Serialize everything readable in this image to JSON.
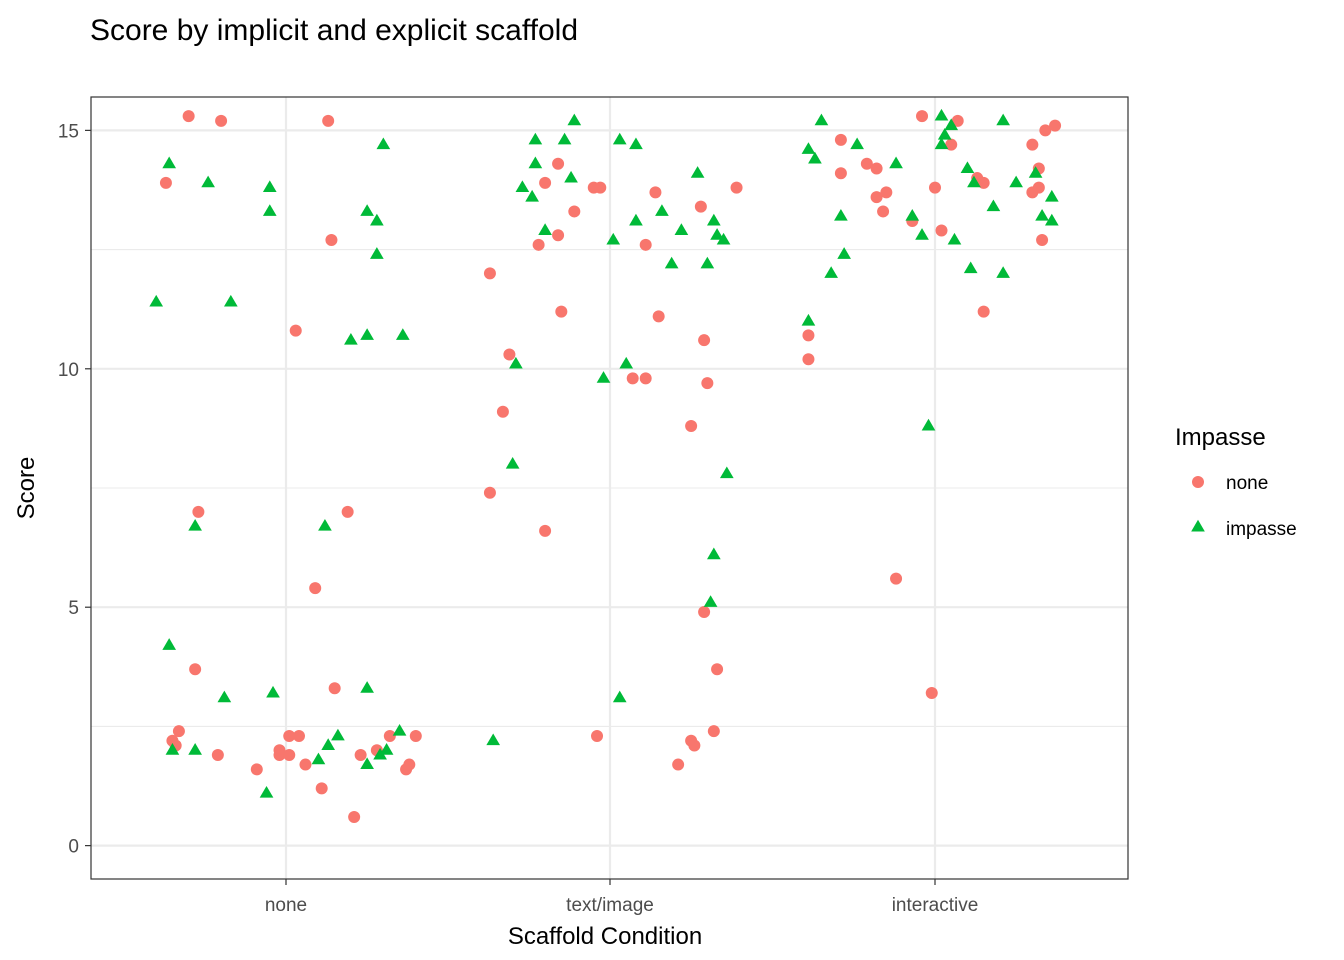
{
  "chart_data": {
    "type": "scatter",
    "title": "Score by implicit and explicit scaffold",
    "xlabel": "Scaffold Condition",
    "ylabel": "Score",
    "categories": [
      "none",
      "text/image",
      "interactive"
    ],
    "ylim": [
      -0.7,
      15.7
    ],
    "yticks": [
      0,
      5,
      10,
      15
    ],
    "grid": true,
    "legend": {
      "title": "Impasse",
      "position": "right",
      "entries": [
        {
          "label": "none",
          "color": "#F8766D",
          "shape": "circle"
        },
        {
          "label": "impasse",
          "color": "#00BA38",
          "shape": "triangle"
        }
      ]
    },
    "series": [
      {
        "name": "none",
        "color": "#F8766D",
        "shape": "circle",
        "points": [
          {
            "x": "none",
            "jitter": -0.37,
            "y": 13.9
          },
          {
            "x": "none",
            "jitter": -0.3,
            "y": 15.3
          },
          {
            "x": "none",
            "jitter": -0.2,
            "y": 15.2
          },
          {
            "x": "none",
            "jitter": 0.13,
            "y": 15.2
          },
          {
            "x": "none",
            "jitter": 0.14,
            "y": 12.7
          },
          {
            "x": "none",
            "jitter": 0.03,
            "y": 10.8
          },
          {
            "x": "none",
            "jitter": -0.27,
            "y": 7.0
          },
          {
            "x": "none",
            "jitter": 0.19,
            "y": 7.0
          },
          {
            "x": "none",
            "jitter": 0.09,
            "y": 5.4
          },
          {
            "x": "none",
            "jitter": -0.28,
            "y": 3.7
          },
          {
            "x": "none",
            "jitter": 0.15,
            "y": 3.3
          },
          {
            "x": "none",
            "jitter": -0.33,
            "y": 2.4
          },
          {
            "x": "none",
            "jitter": -0.35,
            "y": 2.2
          },
          {
            "x": "none",
            "jitter": -0.34,
            "y": 2.1
          },
          {
            "x": "none",
            "jitter": -0.21,
            "y": 1.9
          },
          {
            "x": "none",
            "jitter": -0.09,
            "y": 1.6
          },
          {
            "x": "none",
            "jitter": -0.02,
            "y": 2.0
          },
          {
            "x": "none",
            "jitter": -0.02,
            "y": 1.9
          },
          {
            "x": "none",
            "jitter": 0.01,
            "y": 1.9
          },
          {
            "x": "none",
            "jitter": 0.01,
            "y": 2.3
          },
          {
            "x": "none",
            "jitter": 0.04,
            "y": 2.3
          },
          {
            "x": "none",
            "jitter": 0.06,
            "y": 1.7
          },
          {
            "x": "none",
            "jitter": 0.11,
            "y": 1.2
          },
          {
            "x": "none",
            "jitter": 0.21,
            "y": 0.6
          },
          {
            "x": "none",
            "jitter": 0.23,
            "y": 1.9
          },
          {
            "x": "none",
            "jitter": 0.28,
            "y": 2.0
          },
          {
            "x": "none",
            "jitter": 0.32,
            "y": 2.3
          },
          {
            "x": "none",
            "jitter": 0.37,
            "y": 1.6
          },
          {
            "x": "none",
            "jitter": 0.38,
            "y": 1.7
          },
          {
            "x": "none",
            "jitter": 0.4,
            "y": 2.3
          },
          {
            "x": "text/image",
            "jitter": -0.37,
            "y": 12.0
          },
          {
            "x": "text/image",
            "jitter": -0.31,
            "y": 10.3
          },
          {
            "x": "text/image",
            "jitter": -0.33,
            "y": 9.1
          },
          {
            "x": "text/image",
            "jitter": -0.37,
            "y": 7.4
          },
          {
            "x": "text/image",
            "jitter": -0.2,
            "y": 13.9
          },
          {
            "x": "text/image",
            "jitter": -0.16,
            "y": 14.3
          },
          {
            "x": "text/image",
            "jitter": -0.11,
            "y": 13.3
          },
          {
            "x": "text/image",
            "jitter": -0.16,
            "y": 12.8
          },
          {
            "x": "text/image",
            "jitter": -0.22,
            "y": 12.6
          },
          {
            "x": "text/image",
            "jitter": -0.15,
            "y": 11.2
          },
          {
            "x": "text/image",
            "jitter": -0.2,
            "y": 6.6
          },
          {
            "x": "text/image",
            "jitter": -0.05,
            "y": 13.8
          },
          {
            "x": "text/image",
            "jitter": -0.03,
            "y": 13.8
          },
          {
            "x": "text/image",
            "jitter": -0.04,
            "y": 2.3
          },
          {
            "x": "text/image",
            "jitter": 0.07,
            "y": 9.8
          },
          {
            "x": "text/image",
            "jitter": 0.11,
            "y": 9.8
          },
          {
            "x": "text/image",
            "jitter": 0.11,
            "y": 12.6
          },
          {
            "x": "text/image",
            "jitter": 0.14,
            "y": 13.7
          },
          {
            "x": "text/image",
            "jitter": 0.15,
            "y": 11.1
          },
          {
            "x": "text/image",
            "jitter": 0.28,
            "y": 13.4
          },
          {
            "x": "text/image",
            "jitter": 0.29,
            "y": 10.6
          },
          {
            "x": "text/image",
            "jitter": 0.3,
            "y": 9.7
          },
          {
            "x": "text/image",
            "jitter": 0.25,
            "y": 8.8
          },
          {
            "x": "text/image",
            "jitter": 0.29,
            "y": 4.9
          },
          {
            "x": "text/image",
            "jitter": 0.33,
            "y": 3.7
          },
          {
            "x": "text/image",
            "jitter": 0.32,
            "y": 2.4
          },
          {
            "x": "text/image",
            "jitter": 0.25,
            "y": 2.2
          },
          {
            "x": "text/image",
            "jitter": 0.26,
            "y": 2.1
          },
          {
            "x": "text/image",
            "jitter": 0.21,
            "y": 1.7
          },
          {
            "x": "text/image",
            "jitter": 0.39,
            "y": 13.8
          },
          {
            "x": "interactive",
            "jitter": -0.39,
            "y": 10.7
          },
          {
            "x": "interactive",
            "jitter": -0.39,
            "y": 10.2
          },
          {
            "x": "interactive",
            "jitter": -0.29,
            "y": 14.8
          },
          {
            "x": "interactive",
            "jitter": -0.29,
            "y": 14.1
          },
          {
            "x": "interactive",
            "jitter": -0.21,
            "y": 14.3
          },
          {
            "x": "interactive",
            "jitter": -0.18,
            "y": 14.2
          },
          {
            "x": "interactive",
            "jitter": -0.18,
            "y": 13.6
          },
          {
            "x": "interactive",
            "jitter": -0.15,
            "y": 13.7
          },
          {
            "x": "interactive",
            "jitter": -0.16,
            "y": 13.3
          },
          {
            "x": "interactive",
            "jitter": -0.07,
            "y": 13.1
          },
          {
            "x": "interactive",
            "jitter": -0.12,
            "y": 5.6
          },
          {
            "x": "interactive",
            "jitter": -0.04,
            "y": 15.3
          },
          {
            "x": "interactive",
            "jitter": 0.0,
            "y": 13.8
          },
          {
            "x": "interactive",
            "jitter": 0.02,
            "y": 12.9
          },
          {
            "x": "interactive",
            "jitter": 0.05,
            "y": 14.7
          },
          {
            "x": "interactive",
            "jitter": 0.07,
            "y": 15.2
          },
          {
            "x": "interactive",
            "jitter": 0.13,
            "y": 14.0
          },
          {
            "x": "interactive",
            "jitter": 0.15,
            "y": 13.9
          },
          {
            "x": "interactive",
            "jitter": 0.15,
            "y": 11.2
          },
          {
            "x": "interactive",
            "jitter": -0.01,
            "y": 3.2
          },
          {
            "x": "interactive",
            "jitter": 0.3,
            "y": 14.7
          },
          {
            "x": "interactive",
            "jitter": 0.32,
            "y": 14.2
          },
          {
            "x": "interactive",
            "jitter": 0.32,
            "y": 13.8
          },
          {
            "x": "interactive",
            "jitter": 0.3,
            "y": 13.7
          },
          {
            "x": "interactive",
            "jitter": 0.34,
            "y": 15.0
          },
          {
            "x": "interactive",
            "jitter": 0.37,
            "y": 15.1
          },
          {
            "x": "interactive",
            "jitter": 0.33,
            "y": 12.7
          }
        ]
      },
      {
        "name": "impasse",
        "color": "#00BA38",
        "shape": "triangle",
        "points": [
          {
            "x": "none",
            "jitter": -0.4,
            "y": 11.4
          },
          {
            "x": "none",
            "jitter": -0.36,
            "y": 14.3
          },
          {
            "x": "none",
            "jitter": -0.24,
            "y": 13.9
          },
          {
            "x": "none",
            "jitter": -0.17,
            "y": 11.4
          },
          {
            "x": "none",
            "jitter": -0.28,
            "y": 6.7
          },
          {
            "x": "none",
            "jitter": -0.36,
            "y": 4.2
          },
          {
            "x": "none",
            "jitter": -0.19,
            "y": 3.1
          },
          {
            "x": "none",
            "jitter": -0.35,
            "y": 2.0
          },
          {
            "x": "none",
            "jitter": -0.28,
            "y": 2.0
          },
          {
            "x": "none",
            "jitter": -0.05,
            "y": 13.8
          },
          {
            "x": "none",
            "jitter": -0.05,
            "y": 13.3
          },
          {
            "x": "none",
            "jitter": -0.04,
            "y": 3.2
          },
          {
            "x": "none",
            "jitter": -0.06,
            "y": 1.1
          },
          {
            "x": "none",
            "jitter": 0.12,
            "y": 6.7
          },
          {
            "x": "none",
            "jitter": 0.1,
            "y": 1.8
          },
          {
            "x": "none",
            "jitter": 0.13,
            "y": 2.1
          },
          {
            "x": "none",
            "jitter": 0.16,
            "y": 2.3
          },
          {
            "x": "none",
            "jitter": 0.2,
            "y": 10.6
          },
          {
            "x": "none",
            "jitter": 0.25,
            "y": 10.7
          },
          {
            "x": "none",
            "jitter": 0.25,
            "y": 13.3
          },
          {
            "x": "none",
            "jitter": 0.28,
            "y": 13.1
          },
          {
            "x": "none",
            "jitter": 0.28,
            "y": 12.4
          },
          {
            "x": "none",
            "jitter": 0.3,
            "y": 14.7
          },
          {
            "x": "none",
            "jitter": 0.25,
            "y": 3.3
          },
          {
            "x": "none",
            "jitter": 0.25,
            "y": 1.7
          },
          {
            "x": "none",
            "jitter": 0.29,
            "y": 1.9
          },
          {
            "x": "none",
            "jitter": 0.31,
            "y": 2.0
          },
          {
            "x": "none",
            "jitter": 0.35,
            "y": 2.4
          },
          {
            "x": "none",
            "jitter": 0.36,
            "y": 10.7
          },
          {
            "x": "text/image",
            "jitter": -0.36,
            "y": 2.2
          },
          {
            "x": "text/image",
            "jitter": -0.3,
            "y": 8.0
          },
          {
            "x": "text/image",
            "jitter": -0.29,
            "y": 10.1
          },
          {
            "x": "text/image",
            "jitter": -0.27,
            "y": 13.8
          },
          {
            "x": "text/image",
            "jitter": -0.24,
            "y": 13.6
          },
          {
            "x": "text/image",
            "jitter": -0.23,
            "y": 14.8
          },
          {
            "x": "text/image",
            "jitter": -0.23,
            "y": 14.3
          },
          {
            "x": "text/image",
            "jitter": -0.2,
            "y": 12.9
          },
          {
            "x": "text/image",
            "jitter": -0.14,
            "y": 14.8
          },
          {
            "x": "text/image",
            "jitter": -0.12,
            "y": 14.0
          },
          {
            "x": "text/image",
            "jitter": -0.11,
            "y": 15.2
          },
          {
            "x": "text/image",
            "jitter": -0.02,
            "y": 9.8
          },
          {
            "x": "text/image",
            "jitter": 0.01,
            "y": 12.7
          },
          {
            "x": "text/image",
            "jitter": 0.03,
            "y": 14.8
          },
          {
            "x": "text/image",
            "jitter": 0.03,
            "y": 3.1
          },
          {
            "x": "text/image",
            "jitter": 0.05,
            "y": 10.1
          },
          {
            "x": "text/image",
            "jitter": 0.08,
            "y": 14.7
          },
          {
            "x": "text/image",
            "jitter": 0.08,
            "y": 13.1
          },
          {
            "x": "text/image",
            "jitter": 0.16,
            "y": 13.3
          },
          {
            "x": "text/image",
            "jitter": 0.19,
            "y": 12.2
          },
          {
            "x": "text/image",
            "jitter": 0.22,
            "y": 12.9
          },
          {
            "x": "text/image",
            "jitter": 0.27,
            "y": 14.1
          },
          {
            "x": "text/image",
            "jitter": 0.3,
            "y": 12.2
          },
          {
            "x": "text/image",
            "jitter": 0.32,
            "y": 13.1
          },
          {
            "x": "text/image",
            "jitter": 0.33,
            "y": 12.8
          },
          {
            "x": "text/image",
            "jitter": 0.35,
            "y": 12.7
          },
          {
            "x": "text/image",
            "jitter": 0.36,
            "y": 7.8
          },
          {
            "x": "text/image",
            "jitter": 0.32,
            "y": 6.1
          },
          {
            "x": "text/image",
            "jitter": 0.31,
            "y": 5.1
          },
          {
            "x": "interactive",
            "jitter": -0.39,
            "y": 14.6
          },
          {
            "x": "interactive",
            "jitter": -0.37,
            "y": 14.4
          },
          {
            "x": "interactive",
            "jitter": -0.35,
            "y": 15.2
          },
          {
            "x": "interactive",
            "jitter": -0.39,
            "y": 11.0
          },
          {
            "x": "interactive",
            "jitter": -0.32,
            "y": 12.0
          },
          {
            "x": "interactive",
            "jitter": -0.29,
            "y": 13.2
          },
          {
            "x": "interactive",
            "jitter": -0.28,
            "y": 12.4
          },
          {
            "x": "interactive",
            "jitter": -0.24,
            "y": 14.7
          },
          {
            "x": "interactive",
            "jitter": -0.12,
            "y": 14.3
          },
          {
            "x": "interactive",
            "jitter": -0.07,
            "y": 13.2
          },
          {
            "x": "interactive",
            "jitter": -0.04,
            "y": 12.8
          },
          {
            "x": "interactive",
            "jitter": -0.02,
            "y": 8.8
          },
          {
            "x": "interactive",
            "jitter": 0.02,
            "y": 15.3
          },
          {
            "x": "interactive",
            "jitter": 0.02,
            "y": 14.7
          },
          {
            "x": "interactive",
            "jitter": 0.03,
            "y": 14.9
          },
          {
            "x": "interactive",
            "jitter": 0.05,
            "y": 15.1
          },
          {
            "x": "interactive",
            "jitter": 0.06,
            "y": 12.7
          },
          {
            "x": "interactive",
            "jitter": 0.1,
            "y": 14.2
          },
          {
            "x": "interactive",
            "jitter": 0.11,
            "y": 12.1
          },
          {
            "x": "interactive",
            "jitter": 0.12,
            "y": 13.9
          },
          {
            "x": "interactive",
            "jitter": 0.18,
            "y": 13.4
          },
          {
            "x": "interactive",
            "jitter": 0.21,
            "y": 12.0
          },
          {
            "x": "interactive",
            "jitter": 0.21,
            "y": 15.2
          },
          {
            "x": "interactive",
            "jitter": 0.25,
            "y": 13.9
          },
          {
            "x": "interactive",
            "jitter": 0.31,
            "y": 14.1
          },
          {
            "x": "interactive",
            "jitter": 0.33,
            "y": 13.2
          },
          {
            "x": "interactive",
            "jitter": 0.36,
            "y": 13.6
          },
          {
            "x": "interactive",
            "jitter": 0.36,
            "y": 13.1
          }
        ]
      }
    ]
  }
}
